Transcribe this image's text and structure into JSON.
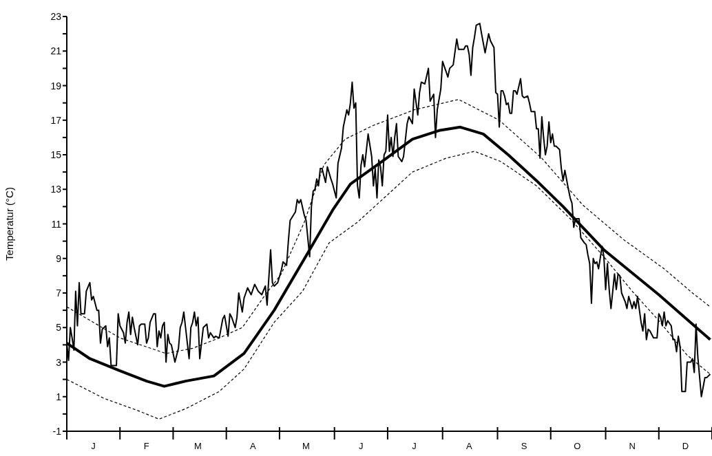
{
  "chart_data": {
    "type": "line",
    "ylabel": "Temperatur (°C)",
    "categories": [
      null,
      null,
      null,
      null,
      null,
      null,
      null,
      null,
      null,
      null,
      null,
      null,
      null,
      null,
      null,
      "J",
      null,
      null,
      null,
      null,
      null,
      null,
      null,
      null,
      null,
      null,
      null,
      null,
      null,
      null,
      null,
      null,
      null,
      null,
      null,
      null,
      null,
      null,
      null,
      null,
      null,
      null,
      null,
      null,
      null,
      "F",
      null,
      null,
      null,
      null,
      null,
      null,
      null,
      null,
      null,
      null,
      null,
      null,
      null,
      null,
      null,
      null,
      null,
      null,
      null,
      null,
      null,
      null,
      null,
      null,
      null,
      null,
      null,
      null,
      "M",
      null,
      null,
      null,
      null,
      null,
      null,
      null,
      null,
      null,
      null,
      null,
      null,
      null,
      null,
      null,
      null,
      null,
      null,
      null,
      null,
      null,
      null,
      null,
      null,
      null,
      null,
      null,
      null,
      null,
      null,
      "A",
      null,
      null,
      null,
      null,
      null,
      null,
      null,
      null,
      null,
      null,
      null,
      null,
      null,
      null,
      null,
      null,
      null,
      null,
      null,
      null,
      null,
      null,
      null,
      null,
      null,
      null,
      null,
      null,
      null,
      "M",
      null,
      null,
      null,
      null,
      null,
      null,
      null,
      null,
      null,
      null,
      null,
      null,
      null,
      null,
      null,
      null,
      null,
      null,
      null,
      null,
      null,
      null,
      null,
      null,
      null,
      null,
      null,
      null,
      null,
      null,
      "J",
      null,
      null,
      null,
      null,
      null,
      null,
      null,
      null,
      null,
      null,
      null,
      null,
      null,
      null,
      null,
      null,
      null,
      null,
      null,
      null,
      null,
      null,
      null,
      null,
      null,
      null,
      null,
      null,
      null,
      "J",
      null,
      null,
      null,
      null,
      null,
      null,
      null,
      null,
      null,
      null,
      null,
      null,
      null,
      null,
      null,
      null,
      null,
      null,
      null,
      null,
      null,
      null,
      null,
      null,
      null,
      null,
      null,
      null,
      null,
      null,
      "A",
      null,
      null,
      null,
      null,
      null,
      null,
      null,
      null,
      null,
      null,
      null,
      null,
      null,
      null,
      null,
      null,
      null,
      null,
      null,
      null,
      null,
      null,
      null,
      null,
      null,
      null,
      null,
      null,
      null,
      null,
      "S",
      null,
      null,
      null,
      null,
      null,
      null,
      null,
      null,
      null,
      null,
      null,
      null,
      null,
      null,
      null,
      null,
      null,
      null,
      null,
      null,
      null,
      null,
      null,
      null,
      null,
      null,
      null,
      null,
      null,
      "O",
      null,
      null,
      null,
      null,
      null,
      null,
      null,
      null,
      null,
      null,
      null,
      null,
      null,
      null,
      null,
      null,
      null,
      null,
      null,
      null,
      null,
      null,
      null,
      null,
      null,
      null,
      null,
      null,
      null,
      null,
      "N",
      null,
      null,
      null,
      null,
      null,
      null,
      null,
      null,
      null,
      null,
      null,
      null,
      null,
      null,
      null,
      null,
      null,
      null,
      null,
      null,
      null,
      null,
      null,
      null,
      null,
      null,
      null,
      null,
      null,
      "D",
      null,
      null,
      null,
      null,
      null,
      null,
      null,
      null,
      null,
      null,
      null,
      null,
      null,
      null,
      null
    ],
    "ylim": [
      -1,
      23
    ],
    "yticks": [
      -1,
      {
        "value": 0,
        "label": null
      },
      1,
      {
        "value": 2,
        "label": null
      },
      3,
      {
        "value": 4,
        "label": null
      },
      5,
      {
        "value": 6,
        "label": null
      },
      7,
      {
        "value": 8,
        "label": null
      },
      9,
      {
        "value": 10,
        "label": null
      },
      11,
      {
        "value": 12,
        "label": null
      },
      13,
      {
        "value": 14,
        "label": null
      },
      15,
      {
        "value": 16,
        "label": null
      },
      17,
      {
        "value": 18,
        "label": null
      },
      19,
      {
        "value": 20,
        "label": null
      },
      21,
      {
        "value": 22,
        "label": null
      },
      23
    ],
    "grid": false,
    "legend": false,
    "marker": "none",
    "series": [
      {
        "color": "#000000",
        "line_style": "solid",
        "values": [
          4.1,
          3.1,
          5.0,
          4.4,
          3.7,
          7.1,
          5.1,
          7.6,
          5.8,
          null,
          5.8,
          7.1,
          null,
          7.6,
          6.6,
          6.8,
          null,
          6.0,
          6.0,
          4.1,
          4.9,
          null,
          5.1,
          3.9,
          4.4,
          2.8,
          null,
          null,
          2.8,
          5.8,
          5.1,
          null,
          4.7,
          4.1,
          5.3,
          5.9,
          4.6,
          5.6,
          5.0,
          null,
          4.0,
          5.1,
          5.2,
          null,
          5.2,
          4.1,
          4.4,
          5.3,
          null,
          5.8,
          5.8,
          3.9,
          4.8,
          4.4,
          5.1,
          5.3,
          3.0,
          4.6,
          4.1,
          4.0,
          null,
          3.0,
          null,
          3.8,
          5.0,
          5.3,
          5.9,
          5.0,
          null,
          3.2,
          5.0,
          5.3,
          5.9,
          5.1,
          5.6,
          3.2,
          null,
          5.0,
          null,
          5.2,
          4.4,
          4.7,
          null,
          4.4,
          4.5,
          null,
          4.4,
          null,
          5.5,
          5.7,
          null,
          4.5,
          5.8,
          5.6,
          null,
          5.0,
          5.6,
          7.0,
          null,
          5.9,
          6.7,
          null,
          7.3,
          null,
          6.9,
          null,
          7.5,
          null,
          7.1,
          null,
          6.9,
          null,
          7.4,
          6.3,
          null,
          9.5,
          7.6,
          7.4,
          null,
          7.6,
          null,
          8.3,
          8.8,
          null,
          8.6,
          10.0,
          11.2,
          null,
          null,
          11.7,
          12.4,
          12.2,
          12.4,
          null,
          11.5,
          11.2,
          null,
          9.1,
          12.0,
          12.9,
          13.0,
          13.6,
          13.2,
          14.2,
          14.2,
          null,
          13.4,
          14.3,
          null,
          13.6,
          13.3,
          null,
          12.5,
          14.5,
          null,
          15.4,
          16.6,
          null,
          17.6,
          17.3,
          18.0,
          19.2,
          17.7,
          18.0,
          13.2,
          12.5,
          14.4,
          15.0,
          14.3,
          null,
          16.2,
          null,
          14.9,
          13.2,
          14.2,
          12.5,
          14.7,
          14.3,
          13.2,
          15.0,
          15.2,
          17.3,
          15.2,
          16.0,
          14.9,
          16.0,
          16.8,
          14.9,
          null,
          14.6,
          14.9,
          null,
          16.8,
          17.2,
          null,
          16.8,
          18.8,
          null,
          17.3,
          18.6,
          19.2,
          null,
          19.1,
          null,
          20.0,
          18.1,
          null,
          18.5,
          16.0,
          17.6,
          null,
          18.8,
          20.4,
          20.1,
          null,
          19.5,
          20.0,
          null,
          20.2,
          null,
          21.7,
          21.1,
          null,
          null,
          21.1,
          21.3,
          21.3,
          20.8,
          19.6,
          21.2,
          21.8,
          22.5,
          null,
          22.6,
          22.0,
          null,
          20.9,
          null,
          22.0,
          21.6,
          null,
          21.2,
          18.6,
          18.5,
          16.6,
          18.7,
          18.7,
          18.4,
          17.9,
          18.0,
          17.4,
          17.4,
          18.7,
          18.7,
          18.5,
          null,
          19.4,
          18.4,
          18.3,
          null,
          18.4,
          18.0,
          17.5,
          null,
          17.5,
          16.5,
          16.5,
          14.8,
          17.2,
          16.0,
          15.0,
          15.5,
          16.9,
          15.7,
          16.2,
          15.5,
          15.5,
          null,
          15.3,
          14.2,
          13.5,
          14.1,
          null,
          13.0,
          12.5,
          12.2,
          10.8,
          11.3,
          null,
          11.3,
          10.2,
          null,
          9.9,
          9.8,
          9.2,
          8.7,
          6.4,
          9.0,
          8.7,
          8.8,
          8.4,
          null,
          9.7,
          9.1,
          7.2,
          8.7,
          7.2,
          6.1,
          null,
          8.1,
          7.2,
          8.1,
          8.0,
          7.0,
          null,
          6.5,
          6.1,
          6.8,
          null,
          6.1,
          6.5,
          6.1,
          6.8,
          null,
          5.3,
          4.8,
          5.8,
          4.3,
          4.9,
          4.8,
          null,
          4.4,
          null,
          4.4,
          5.8,
          5.6,
          5.1,
          5.9,
          5.1,
          5.4,
          null,
          5.1,
          4.3,
          4.3,
          3.6,
          4.5,
          3.9,
          1.3,
          null,
          1.3,
          3.0,
          null,
          3.0,
          3.2,
          2.4,
          5.2,
          3.3,
          null,
          1.0,
          null,
          2.1,
          2.1,
          null,
          2.3,
          null
        ]
      },
      {
        "color": "#000000",
        "line_style": "solid",
        "values": [
          4.1,
          null,
          null,
          null,
          null,
          null,
          null,
          null,
          null,
          null,
          null,
          null,
          null,
          3.2,
          null,
          null,
          null,
          null,
          null,
          null,
          null,
          null,
          null,
          null,
          null,
          null,
          null,
          null,
          null,
          null,
          2.5,
          null,
          null,
          null,
          null,
          null,
          null,
          null,
          null,
          null,
          null,
          null,
          null,
          null,
          null,
          1.9,
          null,
          null,
          null,
          null,
          null,
          null,
          null,
          null,
          null,
          1.6,
          null,
          null,
          null,
          null,
          null,
          null,
          null,
          null,
          null,
          null,
          null,
          1.9,
          null,
          null,
          null,
          null,
          null,
          null,
          null,
          null,
          null,
          null,
          null,
          null,
          null,
          null,
          null,
          2.2,
          null,
          null,
          null,
          null,
          null,
          null,
          null,
          null,
          null,
          null,
          null,
          null,
          null,
          null,
          null,
          null,
          3.5,
          null,
          null,
          null,
          null,
          null,
          null,
          null,
          null,
          null,
          null,
          null,
          null,
          null,
          null,
          null,
          null,
          6.0,
          null,
          null,
          null,
          null,
          null,
          null,
          null,
          null,
          null,
          null,
          null,
          null,
          null,
          null,
          null,
          null,
          null,
          null,
          null,
          9.5,
          null,
          null,
          null,
          null,
          null,
          null,
          null,
          null,
          null,
          null,
          null,
          null,
          11.8,
          null,
          null,
          null,
          null,
          null,
          null,
          null,
          null,
          null,
          13.3,
          null,
          null,
          null,
          null,
          null,
          null,
          null,
          null,
          null,
          null,
          null,
          null,
          null,
          null,
          null,
          null,
          null,
          null,
          14.7,
          null,
          null,
          null,
          null,
          null,
          null,
          null,
          null,
          null,
          null,
          null,
          null,
          null,
          null,
          null,
          15.9,
          null,
          null,
          null,
          null,
          null,
          null,
          null,
          null,
          null,
          null,
          null,
          null,
          null,
          null,
          16.4,
          null,
          null,
          null,
          null,
          null,
          null,
          null,
          null,
          null,
          null,
          null,
          16.6,
          null,
          null,
          null,
          null,
          null,
          null,
          null,
          null,
          null,
          null,
          null,
          null,
          16.2,
          null,
          null,
          null,
          null,
          null,
          null,
          null,
          null,
          null,
          null,
          null,
          null,
          null,
          15.0,
          null,
          null,
          null,
          null,
          null,
          null,
          null,
          null,
          null,
          null,
          null,
          null,
          null,
          null,
          null,
          13.5,
          null,
          null,
          null,
          null,
          null,
          null,
          null,
          null,
          null,
          null,
          null,
          null,
          null,
          null,
          12.0,
          null,
          null,
          null,
          null,
          null,
          null,
          null,
          null,
          null,
          null,
          null,
          null,
          null,
          null,
          null,
          null,
          null,
          null,
          null,
          null,
          null,
          null,
          9.5,
          null,
          null,
          null,
          null,
          null,
          null,
          null,
          null,
          null,
          null,
          null,
          null,
          null,
          null,
          null,
          null,
          null,
          null,
          null,
          null,
          null,
          null,
          null,
          null,
          null,
          null,
          null,
          null,
          null,
          null,
          6.9,
          null,
          null,
          null,
          null,
          null,
          null,
          null,
          null,
          null,
          null,
          null,
          null,
          null,
          null,
          null,
          null,
          null,
          null,
          null,
          null,
          null,
          null,
          null,
          null,
          null,
          null,
          null,
          null,
          4.3,
          null
        ]
      },
      {
        "color": "#000000",
        "line_style": "dashed",
        "values": [
          6.2,
          null,
          null,
          null,
          null,
          null,
          null,
          null,
          null,
          null,
          null,
          null,
          null,
          null,
          null,
          5.3,
          null,
          null,
          null,
          null,
          null,
          null,
          null,
          null,
          null,
          null,
          null,
          null,
          null,
          null,
          4.4,
          null,
          null,
          null,
          null,
          null,
          null,
          null,
          null,
          null,
          null,
          null,
          null,
          null,
          null,
          null,
          null,
          null,
          null,
          null,
          null,
          null,
          null,
          null,
          null,
          null,
          3.5,
          null,
          null,
          null,
          null,
          null,
          null,
          null,
          null,
          null,
          null,
          null,
          null,
          null,
          null,
          3.8,
          null,
          null,
          null,
          null,
          null,
          null,
          null,
          null,
          null,
          null,
          null,
          null,
          null,
          null,
          4.4,
          null,
          null,
          null,
          null,
          null,
          null,
          null,
          null,
          null,
          null,
          null,
          null,
          5.0,
          null,
          null,
          null,
          null,
          null,
          null,
          null,
          null,
          null,
          null,
          null,
          null,
          6.9,
          null,
          null,
          null,
          null,
          null,
          null,
          null,
          null,
          8.1,
          null,
          null,
          null,
          null,
          null,
          null,
          null,
          null,
          null,
          null,
          null,
          null,
          11.1,
          null,
          null,
          null,
          null,
          null,
          null,
          null,
          null,
          null,
          null,
          14.4,
          null,
          null,
          null,
          null,
          null,
          null,
          null,
          null,
          null,
          null,
          null,
          15.9,
          null,
          null,
          null,
          null,
          null,
          null,
          null,
          null,
          null,
          null,
          null,
          null,
          null,
          null,
          null,
          16.7,
          null,
          null,
          null,
          null,
          null,
          null,
          null,
          null,
          null,
          null,
          null,
          null,
          null,
          null,
          null,
          null,
          null,
          null,
          null,
          null,
          null,
          null,
          17.6,
          null,
          null,
          null,
          null,
          null,
          null,
          null,
          null,
          null,
          null,
          null,
          null,
          null,
          null,
          null,
          null,
          null,
          null,
          null,
          null,
          null,
          null,
          null,
          null,
          18.2,
          null,
          null,
          null,
          null,
          null,
          null,
          null,
          null,
          null,
          null,
          null,
          null,
          null,
          null,
          null,
          null,
          null,
          null,
          null,
          null,
          null,
          null,
          17.0,
          null,
          null,
          null,
          null,
          null,
          null,
          null,
          null,
          null,
          null,
          null,
          null,
          null,
          null,
          null,
          null,
          null,
          null,
          null,
          null,
          null,
          null,
          null,
          14.8,
          null,
          null,
          null,
          null,
          null,
          null,
          null,
          null,
          null,
          null,
          null,
          null,
          null,
          null,
          null,
          null,
          null,
          null,
          null,
          null,
          null,
          null,
          12.1,
          null,
          null,
          null,
          null,
          null,
          null,
          null,
          null,
          null,
          null,
          null,
          null,
          null,
          null,
          null,
          null,
          null,
          null,
          null,
          null,
          null,
          null,
          10.1,
          null,
          null,
          null,
          null,
          null,
          null,
          null,
          null,
          null,
          null,
          null,
          null,
          null,
          null,
          null,
          null,
          null,
          null,
          null,
          null,
          null,
          null,
          8.4,
          null,
          null,
          null,
          null,
          null,
          null,
          null,
          null,
          null,
          null,
          null,
          null,
          null,
          null,
          null,
          7.0,
          null,
          null,
          null,
          null,
          null,
          null,
          null,
          null,
          null,
          6.2,
          null
        ]
      },
      {
        "color": "#000000",
        "line_style": "dashed",
        "values": [
          2.0,
          null,
          null,
          null,
          null,
          null,
          null,
          null,
          null,
          null,
          null,
          null,
          null,
          null,
          null,
          null,
          null,
          null,
          null,
          null,
          null,
          0.9,
          null,
          null,
          null,
          null,
          null,
          null,
          null,
          null,
          null,
          null,
          null,
          null,
          null,
          null,
          null,
          null,
          null,
          null,
          0.2,
          null,
          null,
          null,
          null,
          null,
          null,
          null,
          null,
          null,
          null,
          null,
          -0.3,
          null,
          null,
          null,
          null,
          null,
          null,
          null,
          null,
          null,
          null,
          null,
          null,
          null,
          null,
          0.3,
          null,
          null,
          null,
          null,
          null,
          null,
          null,
          null,
          null,
          null,
          null,
          null,
          null,
          null,
          null,
          null,
          null,
          null,
          1.3,
          null,
          null,
          null,
          null,
          null,
          null,
          null,
          null,
          null,
          null,
          null,
          null,
          null,
          2.6,
          null,
          null,
          null,
          null,
          null,
          null,
          null,
          null,
          null,
          null,
          null,
          null,
          null,
          null,
          null,
          null,
          5.3,
          null,
          null,
          null,
          null,
          null,
          null,
          null,
          null,
          null,
          null,
          null,
          null,
          null,
          null,
          null,
          7.1,
          null,
          null,
          null,
          null,
          null,
          null,
          null,
          null,
          null,
          null,
          null,
          null,
          null,
          null,
          9.9,
          null,
          null,
          null,
          null,
          null,
          null,
          null,
          null,
          null,
          null,
          null,
          null,
          null,
          null,
          null,
          11.1,
          null,
          null,
          null,
          null,
          null,
          null,
          null,
          null,
          null,
          null,
          null,
          null,
          null,
          null,
          12.5,
          null,
          null,
          null,
          null,
          null,
          null,
          null,
          null,
          null,
          null,
          null,
          null,
          null,
          null,
          null,
          14.0,
          null,
          null,
          null,
          null,
          null,
          null,
          null,
          null,
          null,
          null,
          null,
          null,
          null,
          null,
          null,
          null,
          null,
          null,
          14.8,
          null,
          null,
          null,
          null,
          null,
          null,
          null,
          null,
          null,
          null,
          null,
          null,
          null,
          null,
          null,
          15.2,
          null,
          null,
          null,
          null,
          null,
          null,
          null,
          null,
          null,
          null,
          null,
          null,
          null,
          null,
          14.6,
          null,
          null,
          null,
          null,
          null,
          null,
          null,
          null,
          null,
          null,
          null,
          null,
          null,
          null,
          null,
          null,
          null,
          null,
          null,
          13.2,
          null,
          null,
          null,
          null,
          null,
          null,
          null,
          null,
          null,
          null,
          null,
          null,
          null,
          null,
          null,
          null,
          null,
          null,
          11.3,
          null,
          null,
          null,
          null,
          null,
          null,
          null,
          null,
          null,
          null,
          null,
          null,
          null,
          null,
          null,
          null,
          null,
          null,
          9.1,
          null,
          null,
          null,
          null,
          null,
          null,
          null,
          null,
          null,
          null,
          null,
          null,
          null,
          null,
          null,
          7.1,
          null,
          null,
          null,
          null,
          null,
          null,
          null,
          null,
          null,
          null,
          null,
          null,
          null,
          null,
          5.4,
          null,
          null,
          null,
          null,
          null,
          null,
          null,
          null,
          null,
          null,
          null,
          null,
          null,
          null,
          null,
          3.4,
          null,
          null,
          null,
          null,
          null,
          null,
          null,
          null,
          null,
          null,
          null,
          null,
          2.3,
          null
        ]
      }
    ]
  }
}
